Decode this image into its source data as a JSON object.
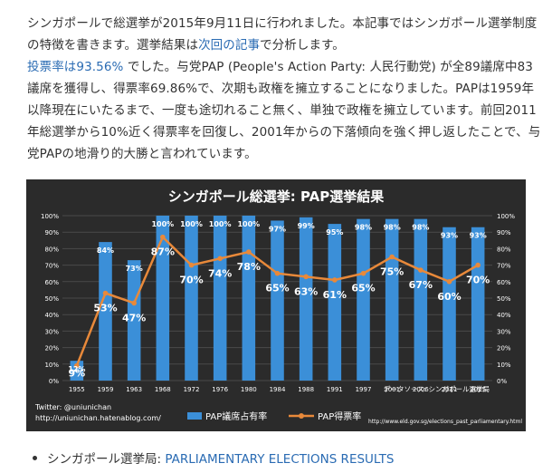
{
  "article": {
    "p1": {
      "text1": "シンガポールで総選挙が2015年9月11日に行われました。本記事ではシンガポール選挙制度の特徴を書きます。選挙結果は",
      "link": "次回の記事",
      "text2": "で分析します。"
    },
    "p2": {
      "link": "投票率は93.56%",
      "text": " でした。与党PAP (People's Action Party: 人民行動党) が全89議席中83議席を獲得し、得票率69.86%で、次期も政権を擁立することになりました。PAPは1959年以降現在にいたるまで、一度も途切れること無く、単独で政権を擁立しています。前回2011年総選挙から10%近く得票率を回復し、2001年からの下落傾向を強く押し返したことで、与党PAPの地滑り的大勝と言われています。"
    }
  },
  "chart_data": {
    "type": "bar",
    "title": "シンガポール総選挙: PAP選挙結果",
    "categories": [
      "1955",
      "1959",
      "1963",
      "1968",
      "1972",
      "1976",
      "1980",
      "1984",
      "1988",
      "1991",
      "1997",
      "2001",
      "2006",
      "2011",
      "2015"
    ],
    "series": [
      {
        "name": "PAP議席占有率",
        "type": "bar",
        "values": [
          12,
          84,
          73,
          100,
          100,
          100,
          100,
          97,
          99,
          95,
          98,
          98,
          98,
          93,
          93
        ],
        "labels": [
          "12%",
          "84%",
          "73%",
          "100%",
          "100%",
          "100%",
          "100%",
          "97%",
          "99%",
          "95%",
          "98%",
          "98%",
          "98%",
          "93%",
          "93%"
        ]
      },
      {
        "name": "PAP得票率",
        "type": "line",
        "values": [
          9,
          53,
          47,
          87,
          70,
          74,
          78,
          65,
          63,
          61,
          65,
          75,
          67,
          60,
          70
        ],
        "labels": [
          "9%",
          "53%",
          "47%",
          "87%",
          "70%",
          "74%",
          "78%",
          "65%",
          "63%",
          "61%",
          "65%",
          "75%",
          "67%",
          "60%",
          "70%"
        ]
      }
    ],
    "ylim": [
      0,
      100
    ],
    "y_ticks_left": [
      "0%",
      "10%",
      "20%",
      "30%",
      "40%",
      "50%",
      "60%",
      "70%",
      "80%",
      "90%",
      "100%"
    ],
    "y_ticks_right": [
      "0%",
      "10%",
      "20%",
      "30%",
      "40%",
      "50%",
      "60%",
      "70%",
      "80%",
      "90%",
      "100%"
    ],
    "grid": true,
    "legend": "bottom-center",
    "colors": {
      "bar": "#3b8fd8",
      "line": "#e8893a",
      "background": "#2b2b2b"
    },
    "footer_left": [
      "Twitter: @uniunichan",
      "http://uniunichan.hatenablog.com/"
    ],
    "source_note": "データソース: シンガポール選挙局",
    "source_url": "http://www.eld.gov.sg/elections_past_parliamentary.html"
  },
  "bullets": [
    {
      "prefix": "シンガポール選挙局: ",
      "link": "PARLIAMENTARY ELECTIONS RESULTS"
    }
  ]
}
